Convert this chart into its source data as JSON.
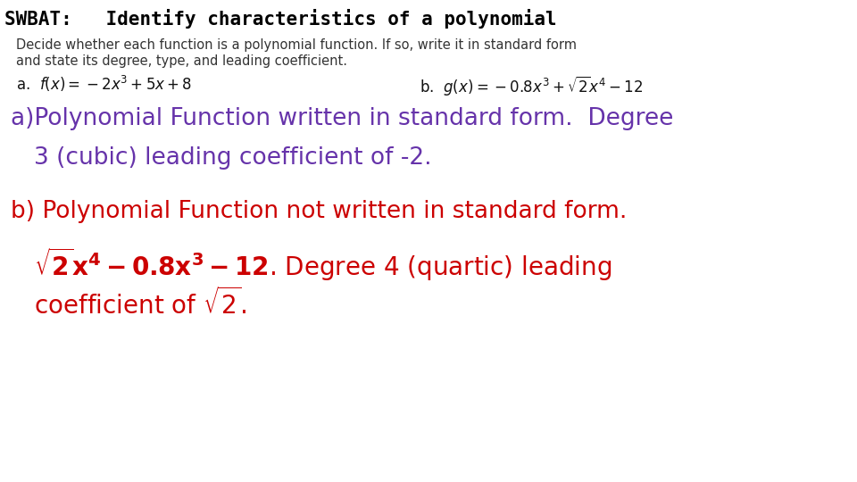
{
  "background_color": "#ffffff",
  "title_text": "SWBAT:   Identify characteristics of a polynomial",
  "title_color": "#000000",
  "title_fontsize": 15,
  "title_font": "monospace",
  "instructions_line1": "Decide whether each function is a polynomial function. If so, write it in standard form",
  "instructions_line2": "and state its degree, type, and leading coefficient.",
  "instructions_color": "#333333",
  "instructions_fontsize": 10.5,
  "problem_color": "#111111",
  "problem_fontsize": 12,
  "answer_a_color": "#6633aa",
  "answer_a_fontsize": 19,
  "answer_b_color": "#cc0000",
  "answer_b_fontsize": 19,
  "answer_b_math_fontsize": 20
}
